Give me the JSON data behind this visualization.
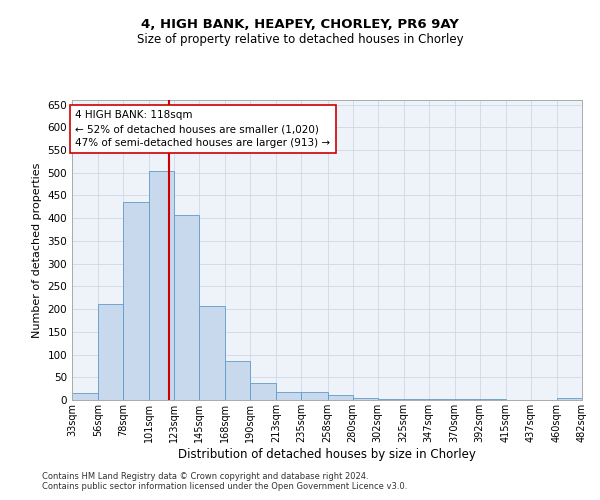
{
  "title1": "4, HIGH BANK, HEAPEY, CHORLEY, PR6 9AY",
  "title2": "Size of property relative to detached houses in Chorley",
  "xlabel": "Distribution of detached houses by size in Chorley",
  "ylabel": "Number of detached properties",
  "footnote1": "Contains HM Land Registry data © Crown copyright and database right 2024.",
  "footnote2": "Contains public sector information licensed under the Open Government Licence v3.0.",
  "annotation_line1": "4 HIGH BANK: 118sqm",
  "annotation_line2": "← 52% of detached houses are smaller (1,020)",
  "annotation_line3": "47% of semi-detached houses are larger (913) →",
  "property_size": 118,
  "bar_color": "#c8d9ed",
  "bar_edge_color": "#5f9bc8",
  "vline_color": "#cc0000",
  "annotation_box_edge": "#cc0000",
  "bins": [
    33,
    56,
    78,
    101,
    123,
    145,
    168,
    190,
    213,
    235,
    258,
    280,
    302,
    325,
    347,
    370,
    392,
    415,
    437,
    460,
    482
  ],
  "values": [
    15,
    212,
    435,
    503,
    407,
    207,
    85,
    38,
    18,
    18,
    11,
    5,
    3,
    3,
    3,
    3,
    3,
    0,
    0,
    5
  ],
  "ylim": [
    0,
    660
  ],
  "yticks": [
    0,
    50,
    100,
    150,
    200,
    250,
    300,
    350,
    400,
    450,
    500,
    550,
    600,
    650
  ],
  "grid_color": "#d0d8e8",
  "bg_color": "#eef2f9",
  "title1_fontsize": 9.5,
  "title2_fontsize": 8.5,
  "ylabel_fontsize": 8,
  "xlabel_fontsize": 8.5,
  "ytick_fontsize": 7.5,
  "xtick_fontsize": 7,
  "annot_fontsize": 7.5,
  "footnote_fontsize": 6
}
